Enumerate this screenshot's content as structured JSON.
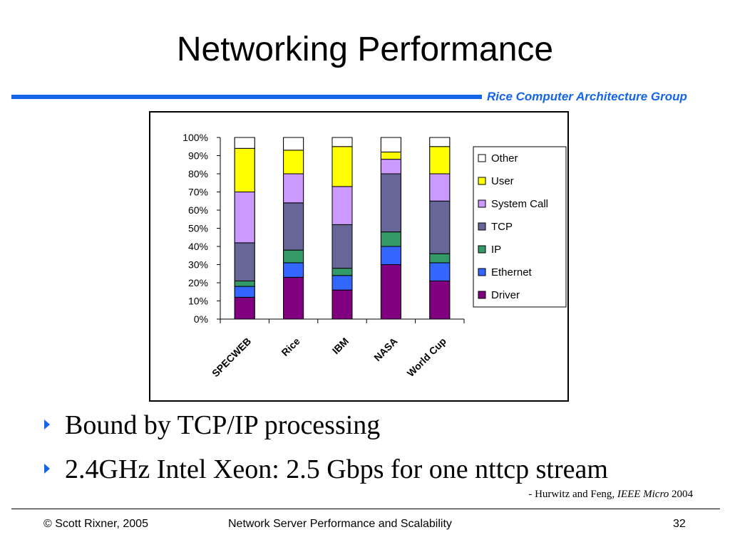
{
  "slide": {
    "title": "Networking Performance",
    "group": "Rice Computer Architecture Group",
    "bullets": [
      "Bound by TCP/IP processing",
      "2.4GHz Intel Xeon: 2.5 Gbps for one nttcp stream"
    ],
    "citation": {
      "prefix": "- Hurwitz and Feng, ",
      "journal": "IEEE Micro",
      "year": " 2004"
    },
    "footer": {
      "copyright": "© Scott Rixner, 2005",
      "course": "Network Server Performance and Scalability",
      "page": "32"
    },
    "colors": {
      "accent": "#1565e8"
    }
  },
  "chart_data": {
    "type": "bar",
    "stacked": true,
    "percent": true,
    "categories": [
      "SPECWEB",
      "Rice",
      "IBM",
      "NASA",
      "World Cup"
    ],
    "ylim": [
      0,
      100
    ],
    "yticks": [
      0,
      10,
      20,
      30,
      40,
      50,
      60,
      70,
      80,
      90,
      100
    ],
    "ytick_labels": [
      "0%",
      "10%",
      "20%",
      "30%",
      "40%",
      "50%",
      "60%",
      "70%",
      "80%",
      "90%",
      "100%"
    ],
    "legend_position": "right",
    "series": [
      {
        "name": "Driver",
        "color": "#800080",
        "values": [
          12,
          23,
          16,
          30,
          21
        ]
      },
      {
        "name": "Ethernet",
        "color": "#3366ff",
        "values": [
          6,
          8,
          8,
          10,
          10
        ]
      },
      {
        "name": "IP",
        "color": "#339966",
        "values": [
          3,
          7,
          4,
          8,
          5
        ]
      },
      {
        "name": "TCP",
        "color": "#666699",
        "values": [
          21,
          26,
          24,
          32,
          29
        ]
      },
      {
        "name": "System Call",
        "color": "#cc99ff",
        "values": [
          28,
          16,
          21,
          8,
          15
        ]
      },
      {
        "name": "User",
        "color": "#ffff00",
        "values": [
          24,
          13,
          22,
          4,
          15
        ]
      },
      {
        "name": "Other",
        "color": "#ffffff",
        "values": [
          6,
          7,
          5,
          8,
          5
        ]
      }
    ]
  }
}
